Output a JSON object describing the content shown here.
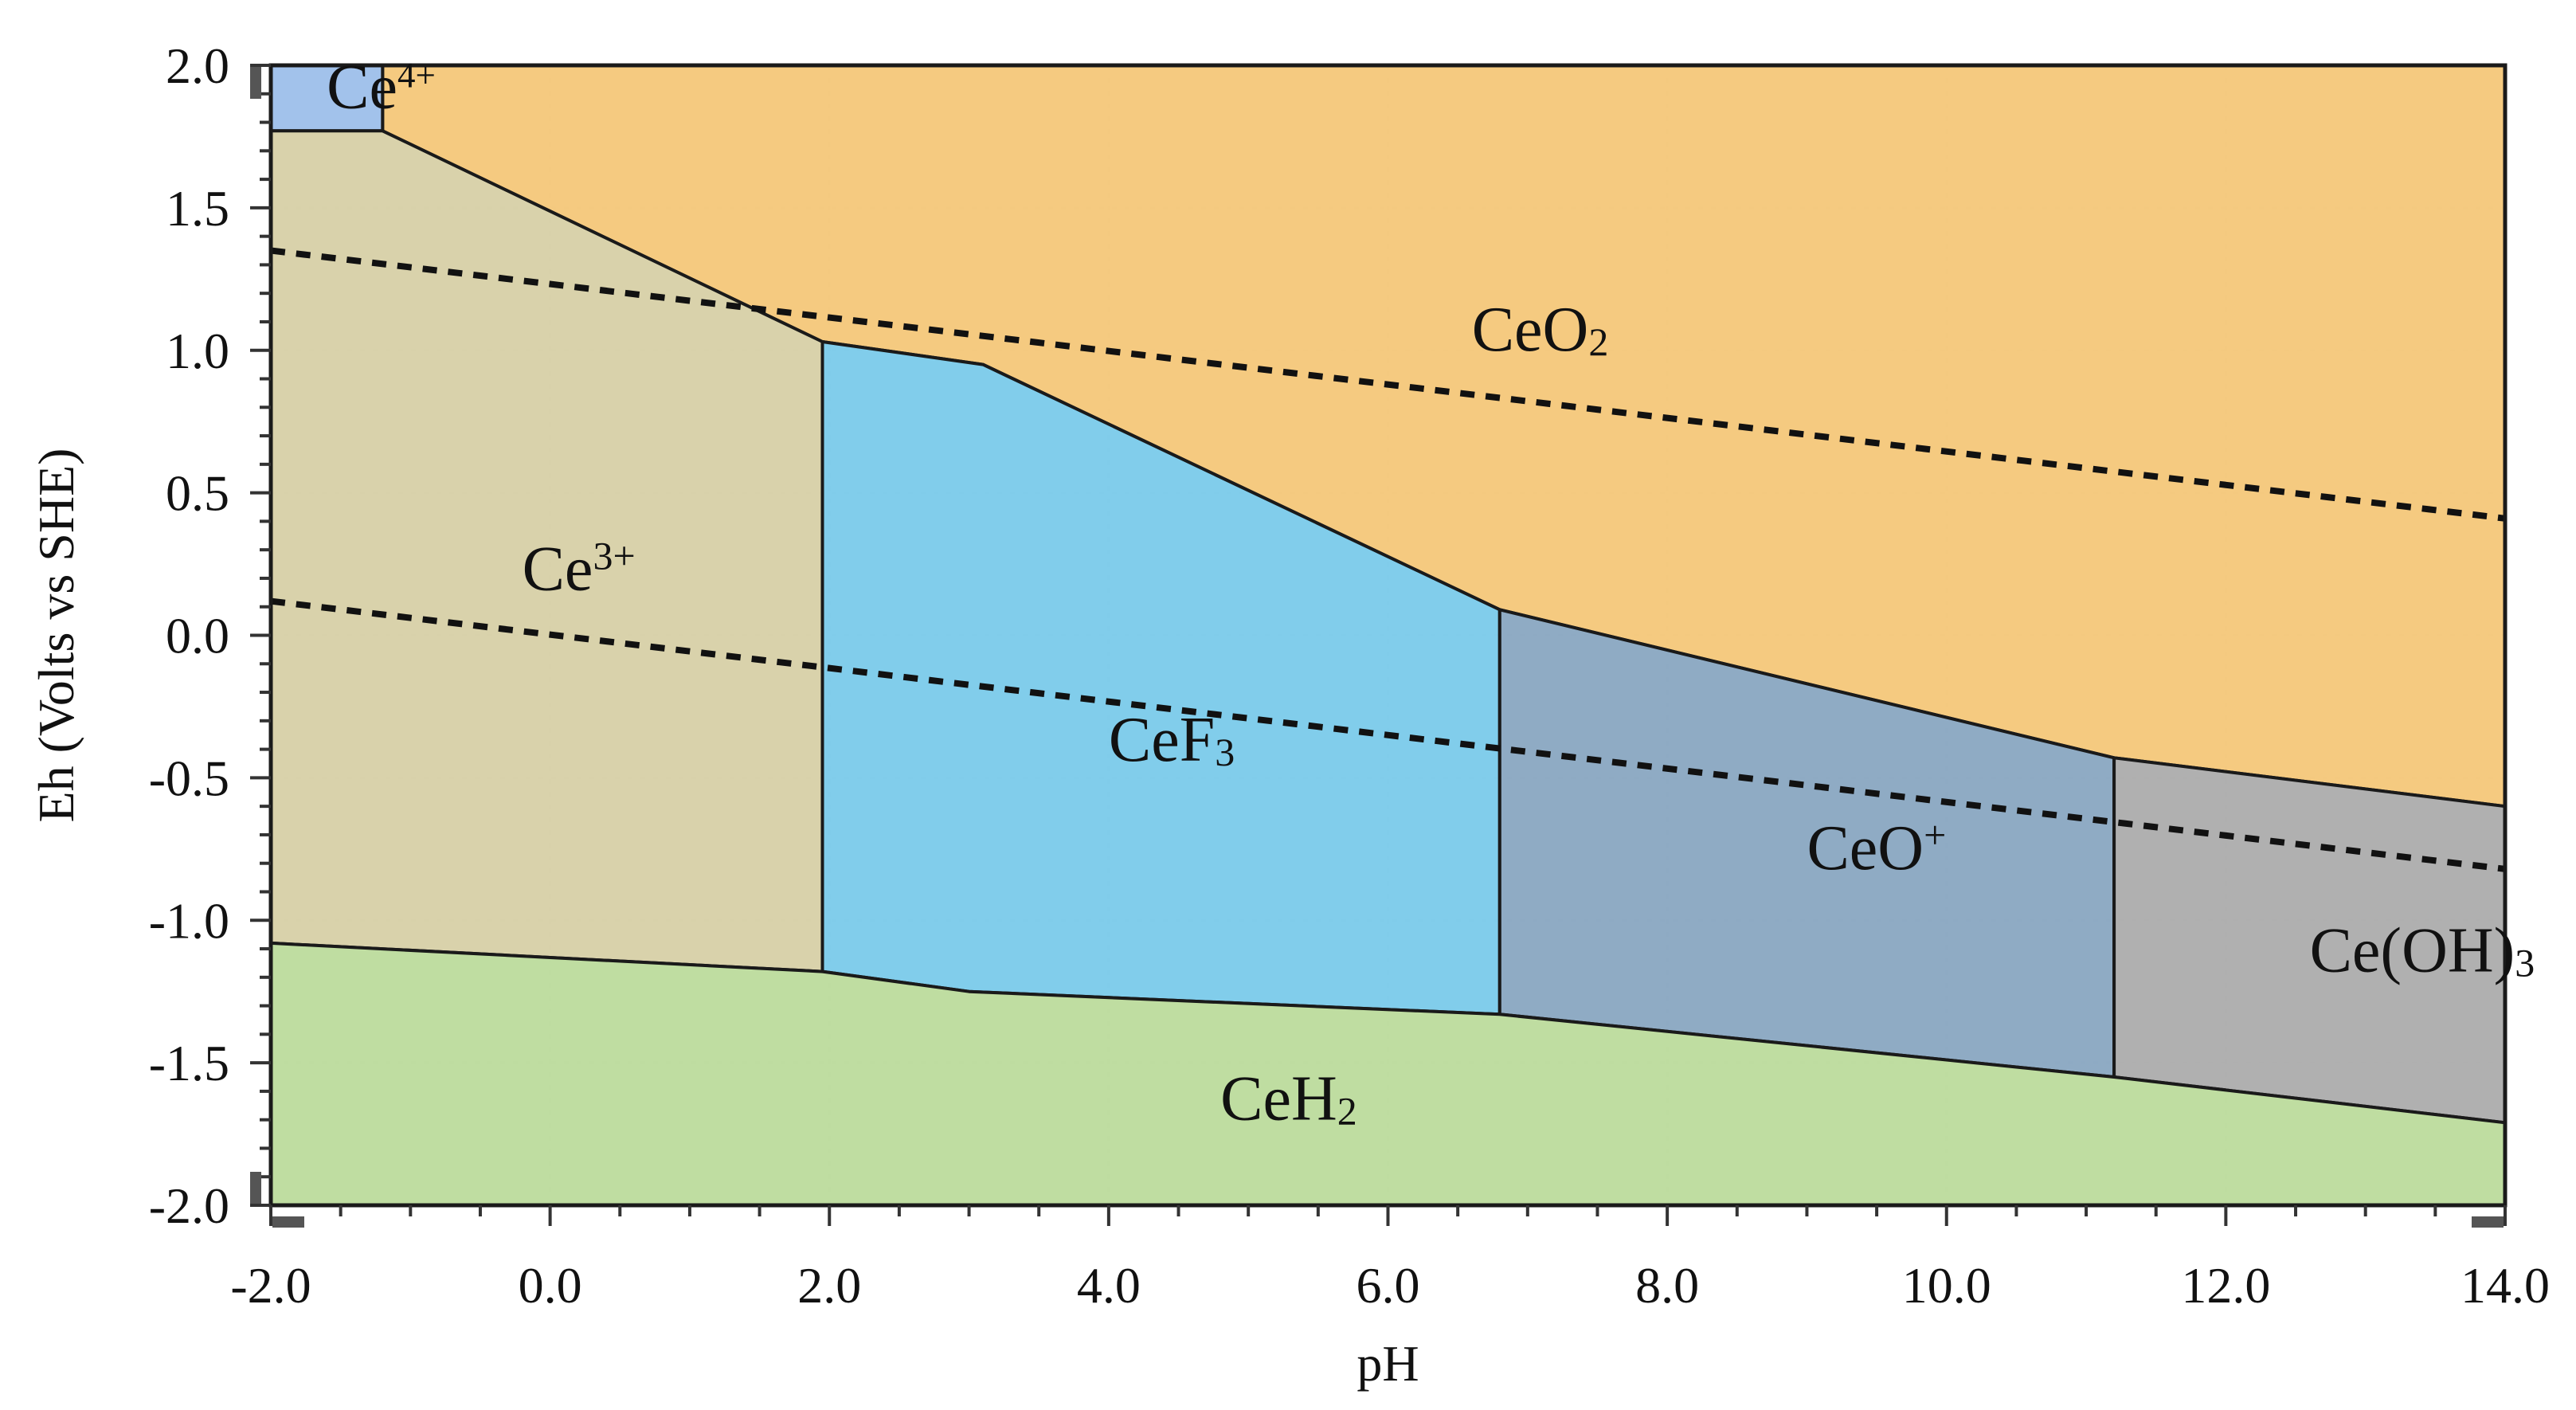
{
  "chart_data": {
    "type": "area",
    "title": "",
    "xlabel": "pH",
    "ylabel": "Eh (Volts vs SHE)",
    "xlim": [
      -2.0,
      14.0
    ],
    "ylim": [
      -2.0,
      2.0
    ],
    "grid": true,
    "x_ticks": [
      "-2.0",
      "0.0",
      "2.0",
      "4.0",
      "6.0",
      "8.0",
      "10.0",
      "12.0",
      "14.0"
    ],
    "y_ticks": [
      "2.0",
      "1.5",
      "1.0",
      "0.5",
      "0.0",
      "-0.5",
      "-1.0",
      "-1.5",
      "-2.0"
    ],
    "regions": [
      {
        "name": "CeO2",
        "label": "CeO",
        "label_sub": "2",
        "label_sup": "",
        "color": "#f5c87c",
        "label_at": [
          6.6,
          1.0
        ],
        "polygon": [
          [
            -1.2,
            2.0
          ],
          [
            14.0,
            2.0
          ],
          [
            14.0,
            -0.6
          ],
          [
            11.2,
            -0.43
          ],
          [
            6.8,
            0.09
          ],
          [
            3.1,
            0.95
          ],
          [
            1.95,
            1.03
          ],
          [
            -1.2,
            1.77
          ]
        ]
      },
      {
        "name": "Ce4+",
        "label": "Ce",
        "label_sub": "",
        "label_sup": "4+",
        "color": "#9fc0ea",
        "label_at": [
          -1.6,
          1.85
        ],
        "polygon": [
          [
            -2.0,
            2.0
          ],
          [
            -1.2,
            2.0
          ],
          [
            -1.2,
            1.77
          ],
          [
            -2.0,
            1.77
          ]
        ]
      },
      {
        "name": "Ce3+",
        "label": "Ce",
        "label_sub": "",
        "label_sup": "3+",
        "color": "#d8d1a8",
        "label_at": [
          -0.2,
          0.16
        ],
        "polygon": [
          [
            -2.0,
            1.77
          ],
          [
            -1.2,
            1.77
          ],
          [
            1.95,
            1.03
          ],
          [
            1.95,
            -1.18
          ],
          [
            -2.0,
            -1.08
          ]
        ]
      },
      {
        "name": "CeF3",
        "label": "CeF",
        "label_sub": "3",
        "label_sup": "",
        "color": "#7dcbea",
        "label_at": [
          4.0,
          -0.44
        ],
        "polygon": [
          [
            1.95,
            1.03
          ],
          [
            3.1,
            0.95
          ],
          [
            6.8,
            0.09
          ],
          [
            6.8,
            -1.33
          ],
          [
            3.0,
            -1.25
          ],
          [
            1.95,
            -1.18
          ]
        ]
      },
      {
        "name": "CeO+",
        "label": "CeO",
        "label_sub": "",
        "label_sup": "+",
        "color": "#8ba8c2",
        "label_at": [
          9.0,
          -0.82
        ],
        "polygon": [
          [
            6.8,
            0.09
          ],
          [
            11.2,
            -0.43
          ],
          [
            11.2,
            -1.55
          ],
          [
            6.8,
            -1.33
          ]
        ]
      },
      {
        "name": "Ce(OH)3",
        "label": "Ce(OH)",
        "label_sub": "3",
        "label_sup": "",
        "color": "#adadad",
        "label_at": [
          12.6,
          -1.18
        ],
        "polygon": [
          [
            11.2,
            -0.43
          ],
          [
            14.0,
            -0.6
          ],
          [
            14.0,
            -1.71
          ],
          [
            11.2,
            -1.55
          ]
        ]
      },
      {
        "name": "CeH2",
        "label": "CeH",
        "label_sub": "2",
        "label_sup": "",
        "color": "#bddc9e",
        "label_at": [
          4.8,
          -1.7
        ],
        "polygon": [
          [
            -2.0,
            -1.08
          ],
          [
            1.95,
            -1.18
          ],
          [
            3.0,
            -1.25
          ],
          [
            6.8,
            -1.33
          ],
          [
            11.2,
            -1.55
          ],
          [
            14.0,
            -1.71
          ],
          [
            14.0,
            -2.0
          ],
          [
            -2.0,
            -2.0
          ]
        ]
      }
    ],
    "dashed_lines": [
      {
        "name": "water-oxidation-line",
        "points": [
          [
            -2.0,
            1.35
          ],
          [
            14.0,
            0.41
          ]
        ]
      },
      {
        "name": "water-reduction-line",
        "points": [
          [
            -2.0,
            0.12
          ],
          [
            14.0,
            -0.82
          ]
        ]
      }
    ],
    "colors": {
      "boundary": "#1a1a1a",
      "grid": "#c9c9c9",
      "axis": "#1a1a1a"
    }
  }
}
